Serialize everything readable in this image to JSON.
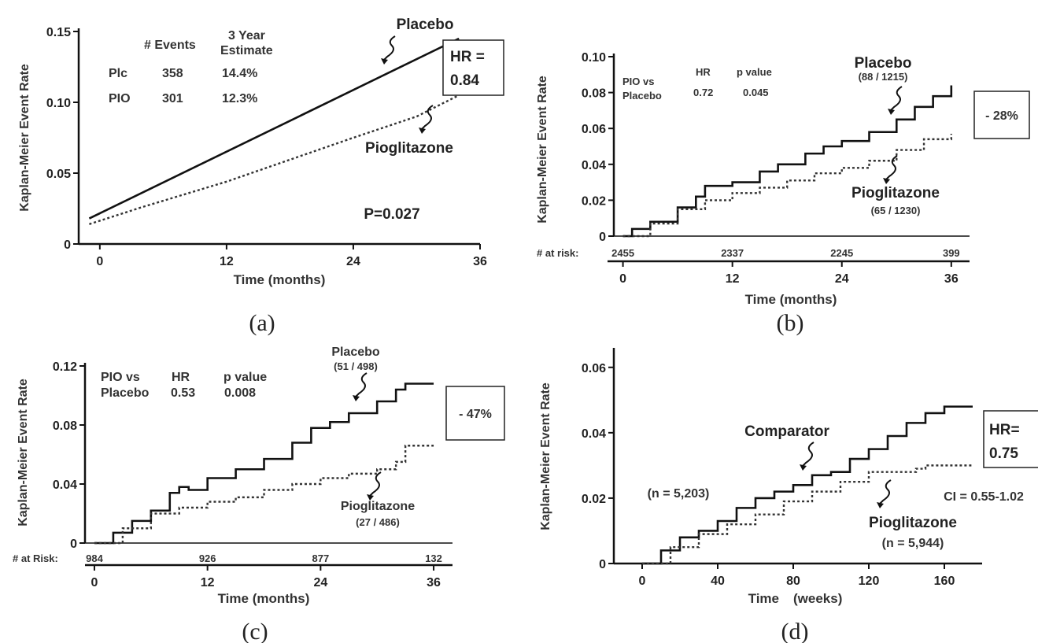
{
  "chart_data": [
    {
      "panel": "(a)",
      "type": "line",
      "ylabel": "Kaplan-Meier Event Rate",
      "xlabel": "Time (months)",
      "xlim": [
        -2,
        36
      ],
      "ylim": [
        0,
        0.15
      ],
      "xticks": [
        "0",
        "12",
        "24",
        "36"
      ],
      "yticks": [
        "0",
        "0.05",
        "0.10",
        "0.15"
      ],
      "series": [
        {
          "name": "Placebo",
          "style": "solid",
          "x": [
            -1,
            34
          ],
          "y": [
            0.018,
            0.145
          ]
        },
        {
          "name": "Pioglitazone",
          "style": "dotted",
          "x": [
            -1,
            4,
            12,
            24,
            30,
            34
          ],
          "y": [
            0.014,
            0.026,
            0.044,
            0.075,
            0.09,
            0.105
          ]
        }
      ],
      "table": {
        "headers": [
          "# Events",
          "3 Year",
          "Estimate"
        ],
        "rows": [
          [
            "Plc",
            "358",
            "14.4%"
          ],
          [
            "PIO",
            "301",
            "12.3%"
          ]
        ]
      },
      "hr_box": [
        "HR =",
        "0.84"
      ],
      "pvalue": "P=0.027"
    },
    {
      "panel": "(b)",
      "type": "line",
      "ylabel": "Kaplan-Meier Event Rate",
      "xlabel": "Time (months)",
      "xlim": [
        -1,
        38
      ],
      "ylim": [
        0,
        0.1
      ],
      "xticks": [
        "0",
        "12",
        "24",
        "36"
      ],
      "yticks": [
        "0",
        "0.02",
        "0.04",
        "0.06",
        "0.08",
        "0.10"
      ],
      "series": [
        {
          "name": "Placebo",
          "label": "(88 / 1215)",
          "style": "solid",
          "x": [
            0,
            1,
            3,
            6,
            8,
            9,
            10,
            12,
            15,
            17,
            20,
            22,
            24,
            27,
            30,
            32,
            34,
            36
          ],
          "y": [
            0,
            0.004,
            0.008,
            0.016,
            0.022,
            0.028,
            0.028,
            0.03,
            0.036,
            0.04,
            0.046,
            0.05,
            0.053,
            0.058,
            0.065,
            0.072,
            0.078,
            0.084
          ]
        },
        {
          "name": "Pioglitazone",
          "label": "(65 / 1230)",
          "style": "dotted",
          "x": [
            0,
            3,
            6,
            9,
            12,
            15,
            18,
            21,
            24,
            27,
            30,
            33,
            36
          ],
          "y": [
            0,
            0.007,
            0.015,
            0.02,
            0.024,
            0.027,
            0.031,
            0.035,
            0.038,
            0.042,
            0.048,
            0.054,
            0.057
          ]
        }
      ],
      "table": {
        "headers": [
          "HR",
          "p value"
        ],
        "rows": [
          [
            "PIO vs",
            "",
            ""
          ],
          [
            "Placebo",
            "0.72",
            "0.045"
          ]
        ]
      },
      "at_risk_label": "# at risk:",
      "at_risk": [
        "2455",
        "2337",
        "2245",
        "399"
      ],
      "reduction_box": "- 28%"
    },
    {
      "panel": "(c)",
      "type": "line",
      "ylabel": "Kaplan-Meier Event Rate",
      "xlabel": "Time (months)",
      "xlim": [
        -1,
        38
      ],
      "ylim": [
        0,
        0.12
      ],
      "xticks": [
        "0",
        "12",
        "24",
        "36"
      ],
      "yticks": [
        "0",
        "0.04",
        "0.08",
        "0.12"
      ],
      "series": [
        {
          "name": "Placebo",
          "label": "(51 / 498)",
          "style": "solid",
          "x": [
            0,
            2,
            4,
            6,
            8,
            9,
            10,
            12,
            15,
            18,
            21,
            23,
            25,
            27,
            30,
            32,
            33,
            36
          ],
          "y": [
            0,
            0.007,
            0.015,
            0.022,
            0.034,
            0.038,
            0.036,
            0.044,
            0.05,
            0.057,
            0.068,
            0.078,
            0.082,
            0.088,
            0.096,
            0.104,
            0.108,
            0.108
          ]
        },
        {
          "name": "Pioglitazone",
          "label": "(27 / 486)",
          "style": "dotted",
          "x": [
            0,
            3,
            6,
            9,
            12,
            15,
            18,
            21,
            24,
            27,
            30,
            32,
            33,
            36
          ],
          "y": [
            0,
            0.01,
            0.02,
            0.024,
            0.028,
            0.031,
            0.036,
            0.04,
            0.044,
            0.047,
            0.05,
            0.055,
            0.066,
            0.066
          ]
        }
      ],
      "table": {
        "headers": [
          "HR",
          "p value"
        ],
        "rows": [
          [
            "PIO vs",
            "",
            ""
          ],
          [
            "Placebo",
            "0.53",
            "0.008"
          ]
        ]
      },
      "at_risk_label": "# at Risk:",
      "at_risk": [
        "984",
        "926",
        "877",
        "132"
      ],
      "reduction_box": "- 47%"
    },
    {
      "panel": "(d)",
      "type": "line",
      "ylabel": "Kaplan-Meier Event Rate",
      "xlabel_parts": [
        "Time",
        "(weeks)"
      ],
      "xlim": [
        -15,
        180
      ],
      "ylim": [
        0,
        0.065
      ],
      "xticks": [
        "0",
        "40",
        "80",
        "120",
        "160"
      ],
      "yticks": [
        "0",
        "0.02",
        "0.04",
        "0.06"
      ],
      "series": [
        {
          "name": "Comparator",
          "label": "(n = 5,203)",
          "style": "solid",
          "x": [
            0,
            10,
            20,
            30,
            40,
            50,
            60,
            70,
            80,
            90,
            100,
            110,
            120,
            130,
            140,
            150,
            160,
            175
          ],
          "y": [
            0,
            0.004,
            0.008,
            0.01,
            0.013,
            0.017,
            0.02,
            0.022,
            0.024,
            0.027,
            0.028,
            0.032,
            0.035,
            0.039,
            0.043,
            0.046,
            0.048,
            0.048
          ]
        },
        {
          "name": "Pioglitazone",
          "label": "(n = 5,944)",
          "style": "dotted",
          "x": [
            0,
            15,
            30,
            45,
            60,
            75,
            90,
            105,
            120,
            135,
            145,
            150,
            175
          ],
          "y": [
            0,
            0.005,
            0.009,
            0.012,
            0.015,
            0.019,
            0.022,
            0.025,
            0.028,
            0.028,
            0.029,
            0.03,
            0.03
          ]
        }
      ],
      "hr_box": [
        "HR=",
        "0.75"
      ],
      "ci": "CI = 0.55-1.02"
    }
  ]
}
